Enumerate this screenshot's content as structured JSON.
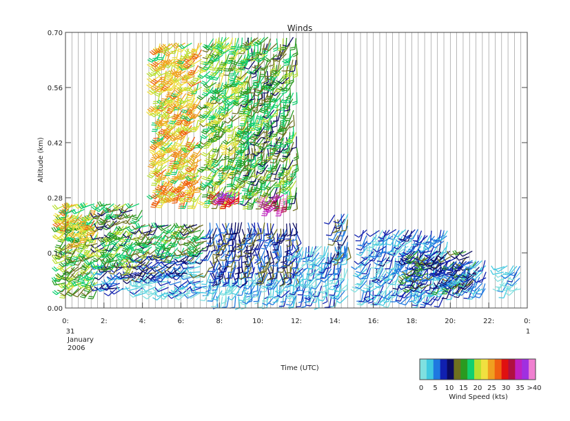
{
  "chart_data": {
    "type": "wind-barb-time-height",
    "title": "Winds",
    "xlabel": "Time (UTC)",
    "ylabel": "Altitude (km)",
    "xlim": [
      0,
      24
    ],
    "ylim": [
      0.0,
      0.7
    ],
    "yticks": [
      "0.00",
      "0.14",
      "0.28",
      "0.42",
      "0.56",
      "0.70"
    ],
    "xticks": [
      "0:",
      "2:",
      "4:",
      "6:",
      "8:",
      "10:",
      "12:",
      "14:",
      "16:",
      "18:",
      "20:",
      "22:",
      "0:"
    ],
    "date_labels": {
      "start_day": "31",
      "month": "January",
      "year": "2006",
      "end_day": "1"
    },
    "grid": "vertical lines every ~20 min",
    "colorbar": {
      "label": "Wind Speed (kts)",
      "ticks": [
        "0",
        "5",
        "10",
        "15",
        "20",
        "25",
        "30",
        "35",
        ">40"
      ],
      "colors": [
        "#7fe0e0",
        "#40c8e0",
        "#1e78e0",
        "#1020b0",
        "#0a0a60",
        "#6e7020",
        "#2a9a20",
        "#10d070",
        "#b8e030",
        "#f0e040",
        "#f0a020",
        "#f06010",
        "#e01010",
        "#b01040",
        "#c020c0",
        "#a030e0",
        "#f080d0"
      ]
    },
    "barb_regions": [
      {
        "t_start": 0.0,
        "t_end": 1.8,
        "alt_min": 0.05,
        "alt_max": 0.24,
        "speed_kts": 18,
        "dir_deg": 230
      },
      {
        "t_start": 0.0,
        "t_end": 1.8,
        "alt_min": 0.18,
        "alt_max": 0.27,
        "speed_kts": 23,
        "dir_deg": 225
      },
      {
        "t_start": 2.0,
        "t_end": 4.0,
        "alt_min": 0.05,
        "alt_max": 0.11,
        "speed_kts": 8,
        "dir_deg": 240
      },
      {
        "t_start": 2.0,
        "t_end": 4.0,
        "alt_min": 0.11,
        "alt_max": 0.27,
        "speed_kts": 16,
        "dir_deg": 230
      },
      {
        "t_start": 4.0,
        "t_end": 7.5,
        "alt_min": 0.04,
        "alt_max": 0.09,
        "speed_kts": 4,
        "dir_deg": 250
      },
      {
        "t_start": 4.0,
        "t_end": 7.5,
        "alt_min": 0.09,
        "alt_max": 0.14,
        "speed_kts": 9,
        "dir_deg": 240
      },
      {
        "t_start": 4.0,
        "t_end": 7.5,
        "alt_min": 0.14,
        "alt_max": 0.22,
        "speed_kts": 16,
        "dir_deg": 230
      },
      {
        "t_start": 7.5,
        "t_end": 12.0,
        "alt_min": 0.03,
        "alt_max": 0.09,
        "speed_kts": 3,
        "dir_deg": 200
      },
      {
        "t_start": 7.5,
        "t_end": 12.0,
        "alt_min": 0.09,
        "alt_max": 0.22,
        "speed_kts": 10,
        "dir_deg": 180
      },
      {
        "t_start": 12.0,
        "t_end": 14.8,
        "alt_min": 0.03,
        "alt_max": 0.17,
        "speed_kts": 5,
        "dir_deg": 200
      },
      {
        "t_start": 14.0,
        "t_end": 14.8,
        "alt_min": 0.14,
        "alt_max": 0.25,
        "speed_kts": 9,
        "dir_deg": 190
      },
      {
        "t_start": 15.5,
        "t_end": 20.0,
        "alt_min": 0.03,
        "alt_max": 0.2,
        "speed_kts": 6,
        "dir_deg": 210
      },
      {
        "t_start": 18.0,
        "t_end": 21.5,
        "alt_min": 0.06,
        "alt_max": 0.15,
        "speed_kts": 12,
        "dir_deg": 230
      },
      {
        "t_start": 20.0,
        "t_end": 22.0,
        "alt_min": 0.05,
        "alt_max": 0.12,
        "speed_kts": 7,
        "dir_deg": 220
      },
      {
        "t_start": 22.8,
        "t_end": 23.8,
        "alt_min": 0.05,
        "alt_max": 0.11,
        "speed_kts": 3,
        "dir_deg": 230
      },
      {
        "t_start": 4.9,
        "t_end": 7.2,
        "alt_min": 0.28,
        "alt_max": 0.68,
        "speed_kts": 24,
        "dir_deg": 220
      },
      {
        "t_start": 7.5,
        "t_end": 9.5,
        "alt_min": 0.28,
        "alt_max": 0.7,
        "speed_kts": 19,
        "dir_deg": 210
      },
      {
        "t_start": 9.5,
        "t_end": 12.0,
        "alt_min": 0.28,
        "alt_max": 0.7,
        "speed_kts": 16,
        "dir_deg": 200
      },
      {
        "t_start": 8.0,
        "t_end": 9.0,
        "alt_min": 0.28,
        "alt_max": 0.3,
        "speed_kts": 35,
        "dir_deg": 210
      },
      {
        "t_start": 10.5,
        "t_end": 11.5,
        "alt_min": 0.26,
        "alt_max": 0.3,
        "speed_kts": 38,
        "dir_deg": 210
      }
    ]
  }
}
